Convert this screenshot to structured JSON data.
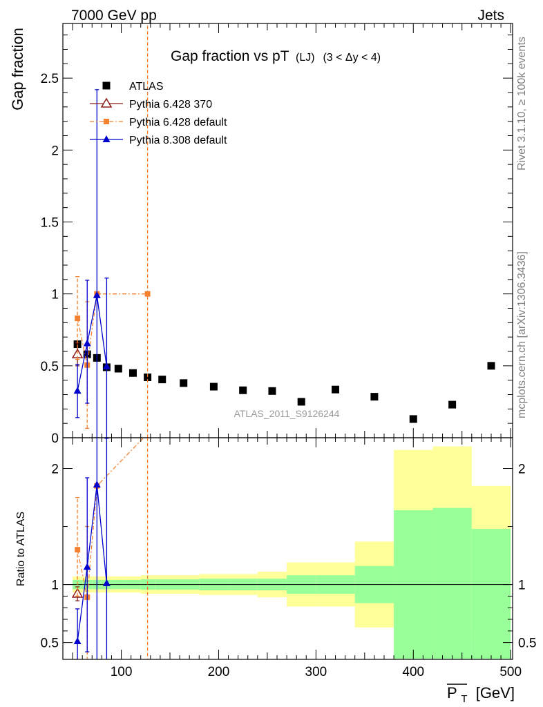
{
  "header": {
    "left": "7000 GeV pp",
    "right": "Jets"
  },
  "side_labels": {
    "rivet": "Rivet 3.1.10, ≥ 100k events",
    "mcplots": "mcplots.cern.ch [arXiv:1306.3436]"
  },
  "colors": {
    "atlas": "#000000",
    "pythia6_370": "#8b1a1a",
    "pythia6_default": "#f5812e",
    "pythia8": "#0000cc",
    "band_inner": "#99ff99",
    "band_outer": "#ffff99"
  },
  "chart_data": [
    {
      "type": "scatter",
      "title_main": "Gap fraction vs pT",
      "title_sub1": "(LJ)",
      "title_sub2": "(3 < Δy < 4)",
      "ylabel": "Gap fraction",
      "watermark": "ATLAS_2011_S9126244",
      "xlim": [
        40,
        502
      ],
      "ylim": [
        0,
        2.88
      ],
      "yticks": [
        {
          "v": 0,
          "label": "0"
        },
        {
          "v": 0.5,
          "label": "0.5"
        },
        {
          "v": 1,
          "label": "1"
        },
        {
          "v": 1.5,
          "label": "1.5"
        },
        {
          "v": 2,
          "label": "2"
        },
        {
          "v": 2.5,
          "label": "2.5"
        }
      ],
      "legend": [
        {
          "name": "ATLAS",
          "key": "atlas"
        },
        {
          "name": "Pythia 6.428 370",
          "key": "p6_370"
        },
        {
          "name": "Pythia 6.428 default",
          "key": "p6_default"
        },
        {
          "name": "Pythia 8.308 default",
          "key": "p8"
        }
      ],
      "series": [
        {
          "name": "ATLAS",
          "key": "atlas",
          "x": [
            55,
            65,
            75,
            85,
            97,
            112,
            127,
            142,
            164,
            195,
            225,
            255,
            285,
            320,
            360,
            400,
            440,
            480
          ],
          "y": [
            0.65,
            0.58,
            0.555,
            0.49,
            0.48,
            0.45,
            0.42,
            0.405,
            0.38,
            0.355,
            0.33,
            0.325,
            0.25,
            0.335,
            0.285,
            0.13,
            0.23,
            0.5
          ]
        },
        {
          "name": "Pythia 6.428 370",
          "key": "p6_370",
          "x": [
            55
          ],
          "y": [
            0.58
          ],
          "yerr": [
            0.08
          ]
        },
        {
          "name": "Pythia 6.428 default",
          "key": "p6_default",
          "x": [
            55,
            65,
            75,
            127
          ],
          "y": [
            0.83,
            0.505,
            1.0,
            1.0
          ],
          "ylo": [
            0.545,
            0.065,
            1.0,
            0.0
          ],
          "yhi": [
            1.12,
            0.945,
            1.0,
            2.88
          ],
          "xlo": [
            50,
            60,
            70,
            72
          ],
          "xhi": [
            60,
            70,
            80,
            180
          ]
        },
        {
          "name": "Pythia 8.308 default",
          "key": "p8",
          "x": [
            55,
            65,
            75,
            85
          ],
          "y": [
            0.325,
            0.655,
            0.99,
            0.495
          ],
          "ylo": [
            0.14,
            0.24,
            0.0,
            0.0
          ],
          "yhi": [
            0.51,
            1.095,
            2.42,
            1.11
          ]
        }
      ]
    },
    {
      "type": "scatter",
      "ylabel": "Ratio to ATLAS",
      "xlabel": "P_T [GeV]",
      "xlabel_main": "P",
      "xlabel_sub": "T",
      "xlabel_unit": "[GeV]",
      "xlim": [
        40,
        502
      ],
      "ylim": [
        0.355,
        2.265
      ],
      "xticks": [
        {
          "v": 100,
          "label": "100"
        },
        {
          "v": 200,
          "label": "200"
        },
        {
          "v": 300,
          "label": "300"
        },
        {
          "v": 400,
          "label": "400"
        },
        {
          "v": 500,
          "label": "500"
        }
      ],
      "yticks": [
        {
          "v": 0.5,
          "label": "0.5"
        },
        {
          "v": 1,
          "label": "1"
        },
        {
          "v": 2,
          "label": "2"
        }
      ],
      "bands": {
        "edges": [
          50,
          60,
          70,
          80,
          90,
          105,
          120,
          135,
          150,
          180,
          210,
          240,
          270,
          300,
          340,
          380,
          420,
          460,
          500
        ],
        "inner_lo": [
          0.96,
          0.96,
          0.96,
          0.96,
          0.96,
          0.96,
          0.955,
          0.955,
          0.955,
          0.95,
          0.95,
          0.95,
          0.92,
          0.92,
          0.84,
          0.36,
          0.36,
          0.36
        ],
        "inner_hi": [
          1.04,
          1.04,
          1.04,
          1.04,
          1.04,
          1.04,
          1.045,
          1.045,
          1.045,
          1.05,
          1.05,
          1.05,
          1.08,
          1.08,
          1.16,
          1.64,
          1.66,
          1.48
        ],
        "outer_lo": [
          0.93,
          0.93,
          0.93,
          0.93,
          0.93,
          0.93,
          0.92,
          0.92,
          0.92,
          0.91,
          0.91,
          0.89,
          0.81,
          0.81,
          0.63,
          0.565,
          0.525,
          0.625
        ],
        "outer_hi": [
          1.07,
          1.07,
          1.07,
          1.07,
          1.07,
          1.07,
          1.08,
          1.08,
          1.08,
          1.09,
          1.09,
          1.11,
          1.19,
          1.19,
          1.37,
          2.16,
          2.19,
          1.85
        ]
      },
      "series": [
        {
          "name": "Pythia 6.428 370",
          "key": "p6_370",
          "x": [
            55
          ],
          "y": [
            0.92
          ],
          "yerr": [
            0.06
          ]
        },
        {
          "name": "Pythia 6.428 default",
          "key": "p6_default",
          "x": [
            55,
            65,
            75,
            127
          ],
          "y": [
            1.3,
            0.89,
            1.85,
            2.3
          ],
          "ylo": [
            0.9,
            0.3,
            1.85,
            0.0
          ],
          "yhi": [
            1.75,
            1.5,
            1.85,
            2.3
          ],
          "xlo": [
            50,
            60,
            70,
            72
          ],
          "xhi": [
            60,
            70,
            80,
            180
          ]
        },
        {
          "name": "Pythia 8.308 default",
          "key": "p8",
          "x": [
            55,
            65,
            75,
            85
          ],
          "y": [
            0.51,
            1.15,
            1.86,
            1.01
          ],
          "ylo": [
            0.2,
            0.42,
            0.0,
            0.0
          ],
          "yhi": [
            0.79,
            1.92,
            4.0,
            2.26
          ]
        }
      ]
    }
  ]
}
